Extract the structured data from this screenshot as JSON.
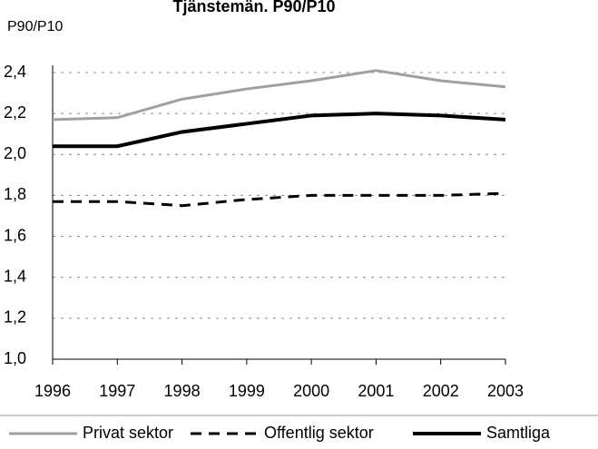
{
  "chart_data": {
    "type": "line",
    "title": "Tjänstemän. P90/P10",
    "y_label": "P90/P10",
    "x": [
      1996,
      1997,
      1998,
      1999,
      2000,
      2001,
      2002,
      2003
    ],
    "xlim": [
      1996,
      2003
    ],
    "xticks": [
      1996,
      1997,
      1998,
      1999,
      2000,
      2001,
      2002,
      2003
    ],
    "ylim": [
      1.0,
      2.4
    ],
    "yticks": [
      {
        "value": 1.0,
        "label": "1,0"
      },
      {
        "value": 1.2,
        "label": "1,2"
      },
      {
        "value": 1.4,
        "label": "1,4"
      },
      {
        "value": 1.6,
        "label": "1,6"
      },
      {
        "value": 1.8,
        "label": "1,8"
      },
      {
        "value": 2.0,
        "label": "2,0"
      },
      {
        "value": 2.2,
        "label": "2,2"
      },
      {
        "value": 2.4,
        "label": "2,4"
      }
    ],
    "grid": true,
    "legend": "bottom",
    "series": [
      {
        "name": "Privat sektor",
        "color": "#a0a0a0",
        "dash": false,
        "width": 3,
        "values": [
          2.17,
          2.18,
          2.27,
          2.32,
          2.36,
          2.41,
          2.36,
          2.33
        ]
      },
      {
        "name": "Offentlig sektor",
        "color": "#000000",
        "dash": true,
        "width": 3,
        "values": [
          1.77,
          1.77,
          1.75,
          1.78,
          1.8,
          1.8,
          1.8,
          1.81
        ]
      },
      {
        "name": "Samtliga",
        "color": "#000000",
        "dash": false,
        "width": 4,
        "values": [
          2.04,
          2.04,
          2.11,
          2.15,
          2.19,
          2.2,
          2.19,
          2.17
        ]
      }
    ]
  }
}
